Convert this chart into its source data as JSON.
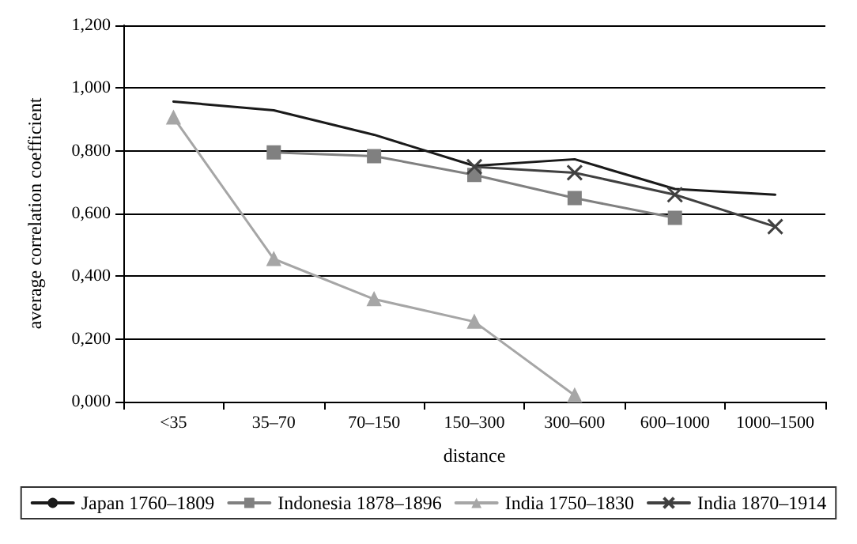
{
  "chart_data": {
    "type": "line",
    "xlabel": "distance",
    "ylabel": "average correlation coefficient",
    "categories": [
      "<35",
      "35–70",
      "70–150",
      "150–300",
      "300–600",
      "600–1000",
      "1000–1500"
    ],
    "series": [
      {
        "name": "Japan 1760–1809",
        "color": "#1a1a1a",
        "marker": "none",
        "values": [
          0.957,
          0.929,
          0.851,
          0.752,
          0.773,
          0.678,
          0.66
        ]
      },
      {
        "name": "Indonesia 1878–1896",
        "color": "#808080",
        "marker": "square",
        "values": [
          null,
          0.795,
          0.783,
          0.723,
          0.649,
          0.586,
          null
        ]
      },
      {
        "name": "India 1750–1830",
        "color": "#a6a6a6",
        "marker": "triangle",
        "values": [
          0.906,
          0.455,
          0.327,
          0.255,
          0.02,
          null,
          null
        ]
      },
      {
        "name": "India 1870–1914",
        "color": "#404040",
        "marker": "cross",
        "values": [
          null,
          null,
          null,
          0.749,
          0.73,
          0.66,
          0.558
        ]
      }
    ],
    "ylim": [
      0,
      1.2
    ],
    "yticks": [
      {
        "value": 0,
        "label": "0,000"
      },
      {
        "value": 0.2,
        "label": "0,200"
      },
      {
        "value": 0.4,
        "label": "0,400"
      },
      {
        "value": 0.6,
        "label": "0,600"
      },
      {
        "value": 0.8,
        "label": "0,800"
      },
      {
        "value": 1.0,
        "label": "1,000"
      },
      {
        "value": 1.2,
        "label": "1,200"
      }
    ],
    "grid": "y",
    "legend": "bottom",
    "line_style": "solid"
  }
}
